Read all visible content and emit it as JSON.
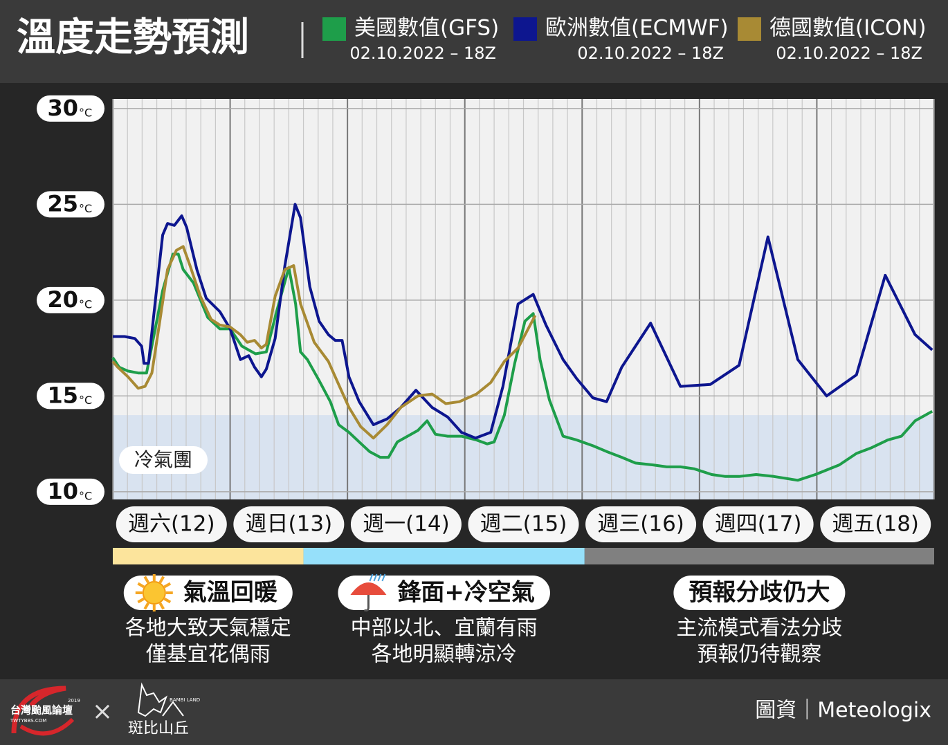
{
  "chart_data": {
    "type": "line",
    "title": "溫度走勢預測",
    "y_unit": "°C",
    "ylim": [
      9.6,
      30.5
    ],
    "yticks": [
      10,
      15,
      20,
      25,
      30
    ],
    "xlim": [
      0,
      168
    ],
    "xticks": [
      {
        "value": 12,
        "label": "週六(12)"
      },
      {
        "value": 36,
        "label": "週日(13)"
      },
      {
        "value": 60,
        "label": "週一(14)"
      },
      {
        "value": 84,
        "label": "週二(15)"
      },
      {
        "value": 108,
        "label": "週三(16)"
      },
      {
        "value": 132,
        "label": "週四(17)"
      },
      {
        "value": 156,
        "label": "週五(18)"
      }
    ],
    "x_grid_step": 3,
    "x_major_step": 24,
    "grid": true,
    "cold_band": {
      "label": "冷氣團",
      "max": 14
    },
    "series": [
      {
        "name": "美國數值(GFS)",
        "run": "02.10.2022 – 18Z",
        "color": "#1e9e4a",
        "x": [
          0,
          1.3,
          3.1,
          5.2,
          6.9,
          8.3,
          10.2,
          12.3,
          13.4,
          14.4,
          16.5,
          19.4,
          21.9,
          24,
          26.4,
          29.2,
          31.4,
          33.5,
          36,
          37.4,
          38.4,
          39.8,
          42.2,
          44.5,
          46.2,
          48.3,
          50.4,
          52.5,
          54.7,
          56.4,
          58.2,
          60.3,
          62.4,
          64.3,
          66,
          68.5,
          71.3,
          74.4,
          76.6,
          78,
          80.1,
          82.2,
          84.3,
          86,
          87.4,
          89.3,
          92.1,
          94.9,
          98.2,
          101,
          104.1,
          106.9,
          110.5,
          113.3,
          116.1,
          118.9,
          122.5,
          125.3,
          128.1,
          131.6,
          135.2,
          140.1,
          143.7,
          148.6,
          152.1,
          155.2,
          158.5,
          161.3,
          164.1,
          167.6
        ],
        "values": [
          17.0,
          16.5,
          16.3,
          16.2,
          16.2,
          18.0,
          20.5,
          22.4,
          22.4,
          21.6,
          20.9,
          19.1,
          18.5,
          18.5,
          17.6,
          17.2,
          17.3,
          19.4,
          21.7,
          19.8,
          17.3,
          16.9,
          15.8,
          14.7,
          13.5,
          13.1,
          12.6,
          12.1,
          11.8,
          11.8,
          12.6,
          12.9,
          13.2,
          13.7,
          13.0,
          12.9,
          12.9,
          12.7,
          12.5,
          12.6,
          14.0,
          16.7,
          18.9,
          19.3,
          16.9,
          14.8,
          12.9,
          12.7,
          12.4,
          12.1,
          11.8,
          11.5,
          11.4,
          11.3,
          11.3,
          11.2,
          10.9,
          10.8,
          10.8,
          10.9,
          10.8,
          10.6,
          10.9,
          11.4,
          12.0,
          12.3,
          12.7,
          12.9,
          13.7,
          14.2
        ]
      },
      {
        "name": "歐洲數值(ECMWF)",
        "run": "02.10.2022 – 18Z",
        "color": "#0d168f",
        "x": [
          0,
          2.4,
          4.5,
          5.9,
          6.4,
          7.3,
          8.8,
          10.2,
          11.2,
          12.6,
          14.1,
          15.1,
          17.2,
          19.1,
          21.9,
          24,
          26.1,
          27.8,
          29,
          30.4,
          31.4,
          33.2,
          35.2,
          37.3,
          38.4,
          40.3,
          42.2,
          44.1,
          45.5,
          46.9,
          48.3,
          50.4,
          53.3,
          56.1,
          58.9,
          62,
          65.3,
          68.5,
          71.3,
          74.2,
          77.3,
          79.8,
          82.9,
          86,
          88.6,
          92.1,
          94.9,
          98.2,
          101,
          104.1,
          110,
          116.1,
          122.2,
          128.1,
          134,
          140.1,
          146,
          152.1,
          158,
          164.1,
          167.6
        ],
        "values": [
          18.1,
          18.1,
          18.0,
          17.6,
          16.7,
          16.7,
          20.2,
          23.4,
          24.0,
          23.9,
          24.4,
          23.8,
          21.6,
          20.1,
          19.4,
          18.5,
          16.9,
          17.1,
          16.5,
          16.0,
          16.4,
          18.0,
          21.8,
          25.0,
          24.3,
          20.7,
          18.9,
          18.2,
          17.9,
          17.9,
          16.0,
          14.7,
          13.5,
          13.8,
          14.4,
          15.3,
          14.4,
          13.9,
          13.1,
          12.8,
          13.1,
          15.5,
          19.8,
          20.3,
          18.7,
          16.9,
          15.9,
          14.9,
          14.7,
          16.5,
          18.8,
          15.5,
          15.6,
          16.6,
          23.3,
          16.9,
          15.0,
          16.1,
          21.3,
          18.2,
          17.4
        ]
      },
      {
        "name": "德國數值(ICON)",
        "run": "02.10.2022 – 18Z",
        "color": "#a88a34",
        "x": [
          0,
          1,
          3.1,
          5.2,
          6.6,
          8,
          9.5,
          11.2,
          13,
          14.4,
          15.8,
          17.9,
          20.1,
          21.9,
          24,
          26.1,
          27.5,
          29,
          30.4,
          31.4,
          33.2,
          35.2,
          37,
          38.4,
          41.2,
          44.1,
          46.2,
          48.3,
          50.7,
          53.3,
          56.1,
          58.9,
          62.4,
          65.3,
          68.1,
          70.9,
          74.4,
          77.3,
          80.1,
          82.9,
          86.4
        ],
        "values": [
          16.8,
          16.5,
          16.0,
          15.4,
          15.5,
          16.2,
          18.7,
          21.6,
          22.6,
          22.8,
          21.8,
          20.2,
          19.0,
          18.7,
          18.6,
          18.2,
          17.8,
          17.9,
          17.5,
          17.7,
          20.2,
          21.6,
          21.8,
          19.8,
          17.8,
          16.8,
          15.6,
          14.4,
          13.4,
          12.8,
          13.5,
          14.4,
          15.0,
          15.1,
          14.6,
          14.7,
          15.1,
          15.7,
          16.8,
          17.5,
          19.2
        ]
      }
    ],
    "phases": [
      {
        "start": 0,
        "end": 39,
        "color": "#fce49c",
        "badge": "氣溫回暖",
        "icon": "sun",
        "lines": [
          "各地大致天氣穩定",
          "僅基宜花偶雨"
        ]
      },
      {
        "start": 39,
        "end": 96.5,
        "color": "#96e0fa",
        "badge": "鋒面+冷空氣",
        "icon": "umbrella",
        "lines": [
          "中部以北、宜蘭有雨",
          "各地明顯轉涼冷"
        ]
      },
      {
        "start": 96.5,
        "end": 168,
        "color": "#808080",
        "badge": "預報分歧仍大",
        "icon": null,
        "lines": [
          "主流模式看法分歧",
          "預報仍待觀察"
        ]
      }
    ]
  },
  "footer": {
    "source": "圖資｜Meteologix",
    "logo1": "台灣颱風論壇",
    "logo1_sub": "TWTYBBS.COM",
    "logo1_year": "2019",
    "cross": "×",
    "logo2": "斑比山丘",
    "logo2_sub": "BAMBI LAND"
  }
}
